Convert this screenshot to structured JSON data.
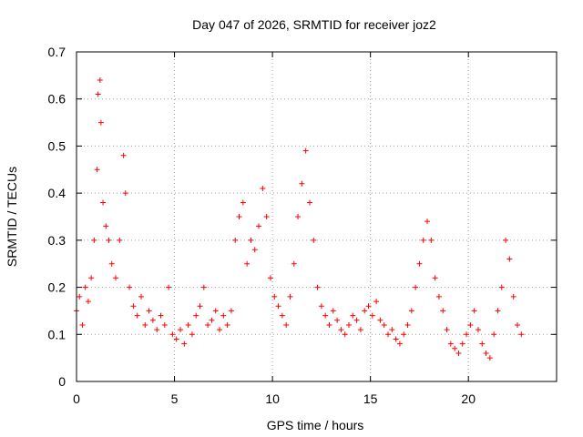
{
  "chart_data": {
    "type": "scatter",
    "title": "Day 047 of 2026, SRMTID for receiver joz2",
    "xlabel": "GPS time / hours",
    "ylabel": "SRMTID / TECUs",
    "xlim": [
      0,
      24.5
    ],
    "ylim": [
      0,
      0.7
    ],
    "xticks": [
      "0",
      "5",
      "10",
      "15",
      "20"
    ],
    "yticks": [
      "0",
      "0.1",
      "0.2",
      "0.3",
      "0.4",
      "0.5",
      "0.6",
      "0.7"
    ],
    "grid": true,
    "marker": "+",
    "color": "#ff0000",
    "series": [
      {
        "name": "SRMTID",
        "x": [
          0.0,
          0.15,
          0.3,
          0.45,
          0.6,
          0.75,
          0.9,
          1.05,
          1.1,
          1.2,
          1.25,
          1.35,
          1.5,
          1.65,
          1.8,
          2.0,
          2.2,
          2.4,
          2.5,
          2.7,
          2.9,
          3.1,
          3.3,
          3.5,
          3.7,
          3.9,
          4.1,
          4.3,
          4.5,
          4.7,
          4.9,
          5.1,
          5.3,
          5.5,
          5.7,
          5.9,
          6.1,
          6.3,
          6.5,
          6.7,
          6.9,
          7.1,
          7.3,
          7.5,
          7.7,
          7.9,
          8.1,
          8.3,
          8.5,
          8.7,
          8.9,
          9.1,
          9.3,
          9.5,
          9.7,
          9.9,
          10.1,
          10.3,
          10.5,
          10.7,
          10.9,
          11.1,
          11.3,
          11.5,
          11.7,
          11.9,
          12.1,
          12.3,
          12.5,
          12.7,
          12.9,
          13.1,
          13.3,
          13.5,
          13.7,
          13.9,
          14.1,
          14.3,
          14.5,
          14.7,
          14.9,
          15.1,
          15.3,
          15.5,
          15.7,
          15.9,
          16.1,
          16.3,
          16.5,
          16.7,
          16.9,
          17.1,
          17.3,
          17.5,
          17.7,
          17.9,
          18.1,
          18.3,
          18.5,
          18.7,
          18.9,
          19.1,
          19.3,
          19.5,
          19.7,
          19.9,
          20.1,
          20.3,
          20.5,
          20.7,
          20.9,
          21.1,
          21.3,
          21.5,
          21.7,
          21.9,
          22.1,
          22.3,
          22.5,
          22.7
        ],
        "y": [
          0.15,
          0.18,
          0.12,
          0.2,
          0.17,
          0.22,
          0.3,
          0.45,
          0.61,
          0.64,
          0.55,
          0.38,
          0.33,
          0.3,
          0.25,
          0.22,
          0.3,
          0.48,
          0.4,
          0.2,
          0.16,
          0.14,
          0.18,
          0.12,
          0.15,
          0.13,
          0.11,
          0.14,
          0.12,
          0.2,
          0.1,
          0.09,
          0.11,
          0.08,
          0.12,
          0.1,
          0.14,
          0.16,
          0.2,
          0.12,
          0.13,
          0.15,
          0.11,
          0.14,
          0.12,
          0.15,
          0.3,
          0.35,
          0.38,
          0.25,
          0.3,
          0.28,
          0.33,
          0.41,
          0.35,
          0.22,
          0.18,
          0.16,
          0.14,
          0.12,
          0.18,
          0.25,
          0.35,
          0.42,
          0.49,
          0.38,
          0.3,
          0.2,
          0.16,
          0.14,
          0.12,
          0.15,
          0.13,
          0.11,
          0.1,
          0.12,
          0.14,
          0.13,
          0.11,
          0.15,
          0.16,
          0.14,
          0.17,
          0.13,
          0.12,
          0.1,
          0.11,
          0.09,
          0.08,
          0.1,
          0.12,
          0.15,
          0.2,
          0.25,
          0.3,
          0.34,
          0.3,
          0.22,
          0.18,
          0.15,
          0.11,
          0.08,
          0.07,
          0.06,
          0.08,
          0.1,
          0.12,
          0.15,
          0.11,
          0.08,
          0.06,
          0.05,
          0.1,
          0.15,
          0.2,
          0.3,
          0.26,
          0.18,
          0.12,
          0.1
        ]
      }
    ]
  }
}
